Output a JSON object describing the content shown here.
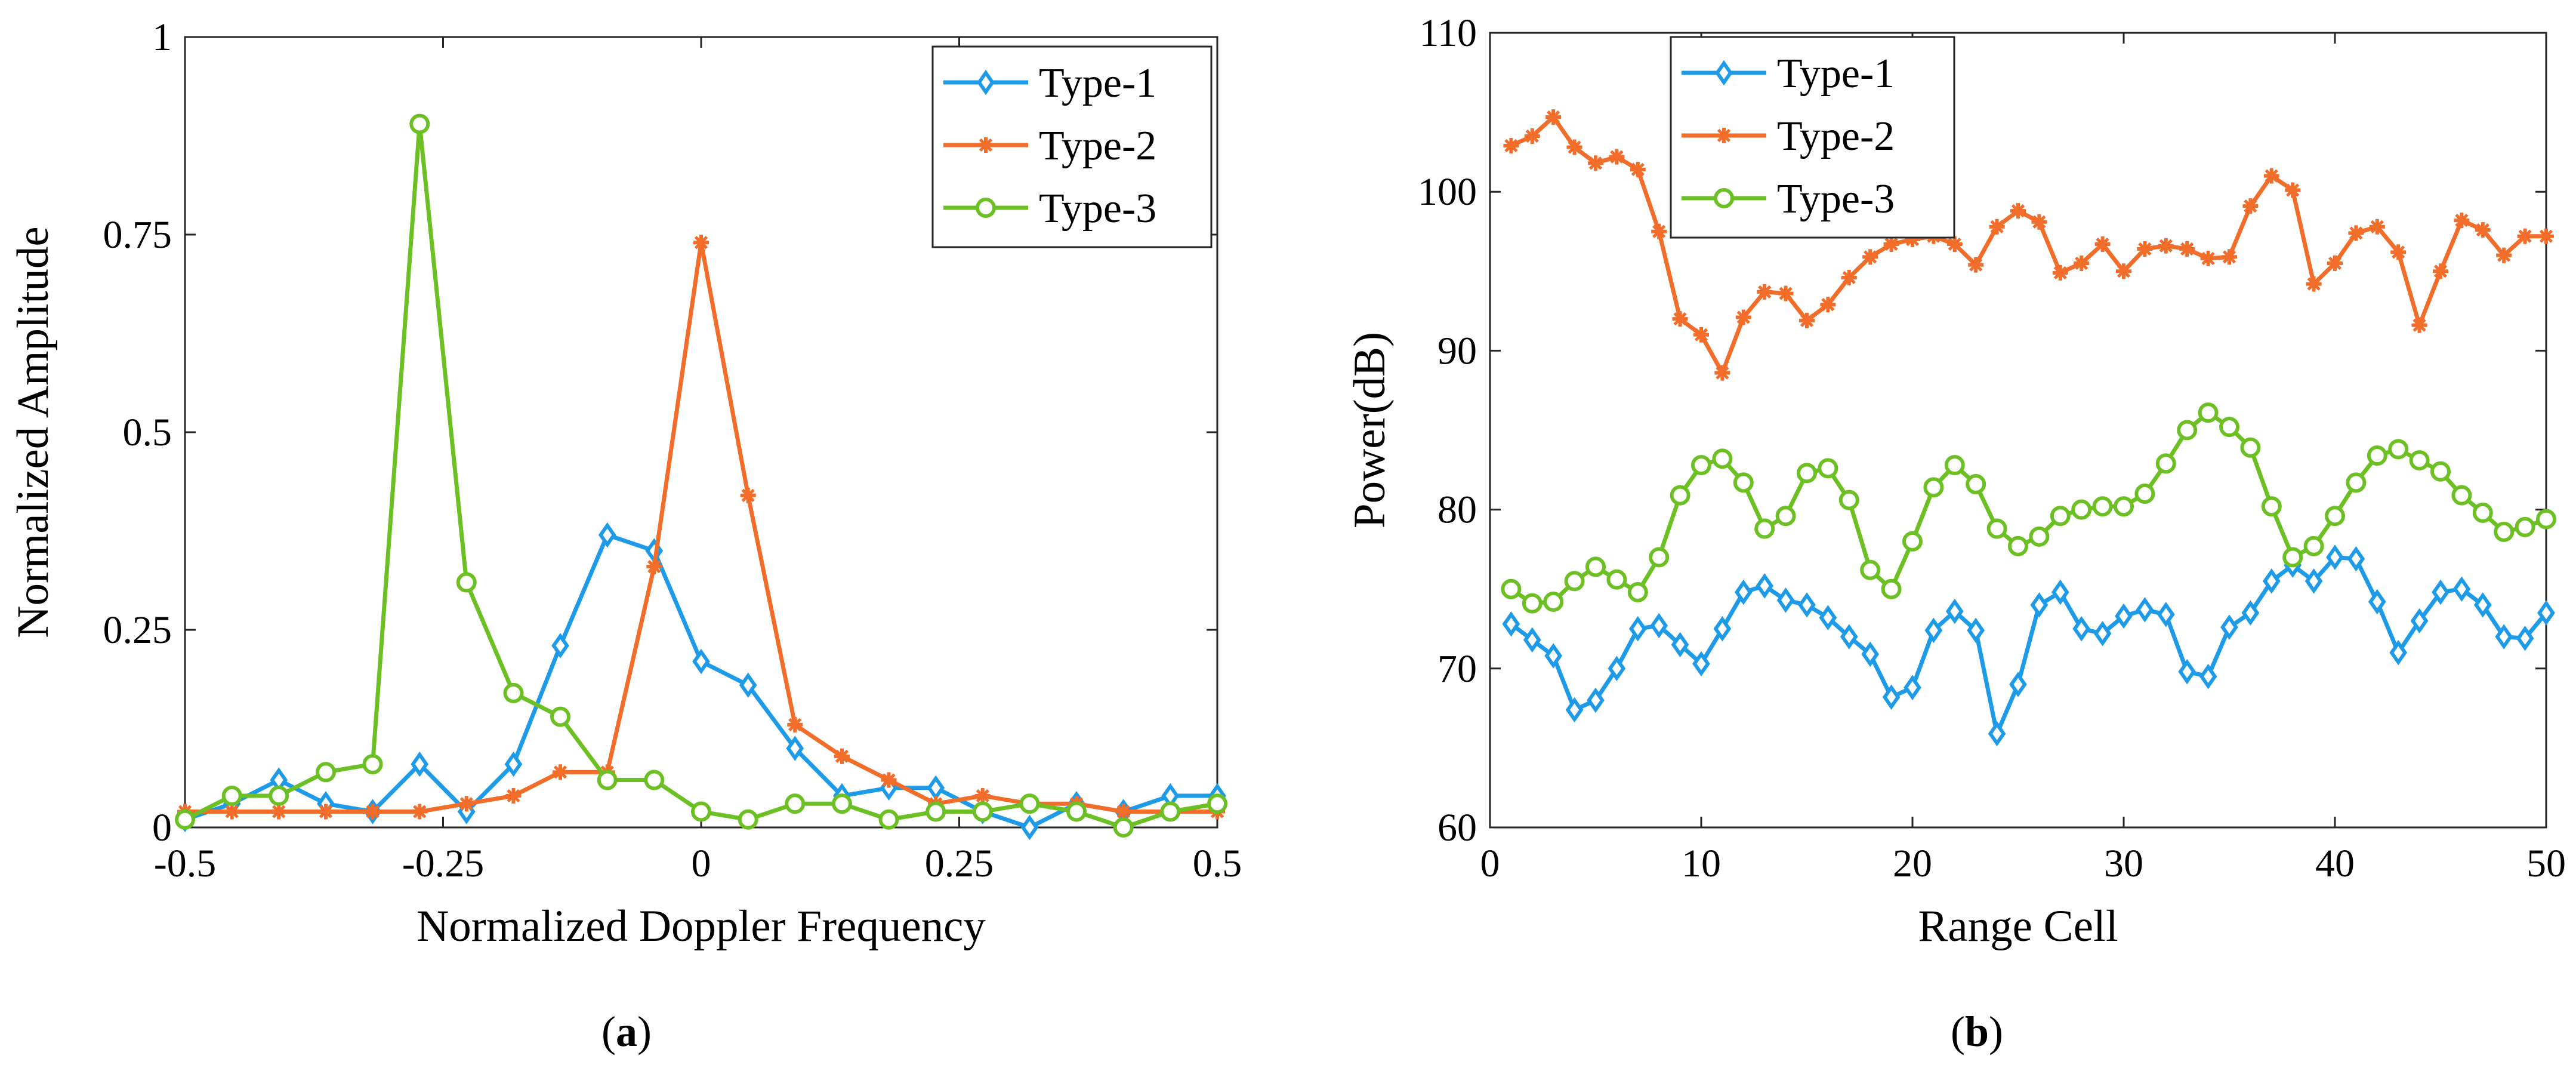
{
  "chart_data": [
    {
      "type": "line",
      "panel": "a",
      "caption": "(a)",
      "caption_letter": "a",
      "xlabel": "Normalized Doppler Frequency",
      "ylabel": "Normalized Amplitude",
      "xlim": [
        -0.5,
        0.5
      ],
      "ylim": [
        0,
        1
      ],
      "xticks": [
        -0.5,
        -0.25,
        0,
        0.25,
        0.5
      ],
      "xtick_labels": [
        "-0.5",
        "-0.25",
        "0",
        "0.25",
        "0.5"
      ],
      "yticks": [
        0,
        0.25,
        0.5,
        0.75,
        1
      ],
      "ytick_labels": [
        "0",
        "0.25",
        "0.5",
        "0.75",
        "1"
      ],
      "legend_position": "top-right",
      "x": [
        -0.5,
        -0.4545,
        -0.4091,
        -0.3636,
        -0.3182,
        -0.2727,
        -0.2273,
        -0.1818,
        -0.1364,
        -0.0909,
        -0.0455,
        0,
        0.0455,
        0.0909,
        0.1364,
        0.1818,
        0.2273,
        0.2727,
        0.3182,
        0.3636,
        0.4091,
        0.4545,
        0.5
      ],
      "series": [
        {
          "name": "Type-1",
          "color": "#1e9be8",
          "marker": "diamond",
          "values": [
            0.01,
            0.03,
            0.06,
            0.03,
            0.02,
            0.08,
            0.02,
            0.08,
            0.23,
            0.37,
            0.35,
            0.21,
            0.18,
            0.1,
            0.04,
            0.05,
            0.05,
            0.02,
            0.0,
            0.03,
            0.02,
            0.04,
            0.04
          ]
        },
        {
          "name": "Type-2",
          "color": "#f26c2a",
          "marker": "asterisk",
          "values": [
            0.02,
            0.02,
            0.02,
            0.02,
            0.02,
            0.02,
            0.03,
            0.04,
            0.07,
            0.07,
            0.33,
            0.74,
            0.42,
            0.13,
            0.09,
            0.06,
            0.03,
            0.04,
            0.03,
            0.03,
            0.02,
            0.02,
            0.02
          ]
        },
        {
          "name": "Type-3",
          "color": "#6cc024",
          "marker": "circle",
          "values": [
            0.01,
            0.04,
            0.04,
            0.07,
            0.08,
            0.89,
            0.31,
            0.17,
            0.14,
            0.06,
            0.06,
            0.02,
            0.01,
            0.03,
            0.03,
            0.01,
            0.02,
            0.02,
            0.03,
            0.02,
            0.0,
            0.02,
            0.03
          ]
        }
      ]
    },
    {
      "type": "line",
      "panel": "b",
      "caption": "(b)",
      "caption_letter": "b",
      "xlabel": "Range Cell",
      "ylabel": "Power(dB)",
      "xlim": [
        0,
        50
      ],
      "ylim": [
        60,
        110
      ],
      "xticks": [
        0,
        10,
        20,
        30,
        40,
        50
      ],
      "xtick_labels": [
        "0",
        "10",
        "20",
        "30",
        "40",
        "50"
      ],
      "yticks": [
        60,
        70,
        80,
        90,
        100,
        110
      ],
      "ytick_labels": [
        "60",
        "70",
        "80",
        "90",
        "100",
        "110"
      ],
      "legend_position": "top-left",
      "x": [
        1,
        2,
        3,
        4,
        5,
        6,
        7,
        8,
        9,
        10,
        11,
        12,
        13,
        14,
        15,
        16,
        17,
        18,
        19,
        20,
        21,
        22,
        23,
        24,
        25,
        26,
        27,
        28,
        29,
        30,
        31,
        32,
        33,
        34,
        35,
        36,
        37,
        38,
        39,
        40,
        41,
        42,
        43,
        44,
        45,
        46,
        47,
        48,
        49,
        50
      ],
      "series": [
        {
          "name": "Type-1",
          "color": "#1e9be8",
          "marker": "diamond",
          "values": [
            72.8,
            71.8,
            70.8,
            67.4,
            68.0,
            70.0,
            72.5,
            72.7,
            71.5,
            70.3,
            72.5,
            74.8,
            75.2,
            74.3,
            74.0,
            73.2,
            72.0,
            70.9,
            68.2,
            68.8,
            72.4,
            73.6,
            72.4,
            65.9,
            69.0,
            74.0,
            74.8,
            72.5,
            72.2,
            73.3,
            73.7,
            73.4,
            69.8,
            69.5,
            72.6,
            73.5,
            75.5,
            76.5,
            75.5,
            77.0,
            76.9,
            74.2,
            71.0,
            73.0,
            74.8,
            75.0,
            74.0,
            72.0,
            71.9,
            73.5
          ]
        },
        {
          "name": "Type-2",
          "color": "#f26c2a",
          "marker": "asterisk",
          "values": [
            102.9,
            103.5,
            104.7,
            102.8,
            101.8,
            102.2,
            101.4,
            97.5,
            92.0,
            91.0,
            88.6,
            92.1,
            93.7,
            93.6,
            91.9,
            92.9,
            94.6,
            95.9,
            96.7,
            97.0,
            97.2,
            96.7,
            95.4,
            97.8,
            98.8,
            98.1,
            94.9,
            95.5,
            96.7,
            95.0,
            96.4,
            96.6,
            96.4,
            95.8,
            95.9,
            99.1,
            101.0,
            100.1,
            94.2,
            95.5,
            97.4,
            97.8,
            96.2,
            91.6,
            95.0,
            98.2,
            97.6,
            96.0,
            97.2,
            97.2
          ]
        },
        {
          "name": "Type-3",
          "color": "#6cc024",
          "marker": "circle",
          "values": [
            75.0,
            74.1,
            74.2,
            75.5,
            76.4,
            75.6,
            74.8,
            77.0,
            80.9,
            82.8,
            83.2,
            81.7,
            78.8,
            79.6,
            82.3,
            82.6,
            80.6,
            76.2,
            75.0,
            78.0,
            81.4,
            82.8,
            81.6,
            78.8,
            77.7,
            78.3,
            79.6,
            80.0,
            80.2,
            80.2,
            81.0,
            82.9,
            85.0,
            86.1,
            85.2,
            83.9,
            80.2,
            77.0,
            77.7,
            79.6,
            81.7,
            83.4,
            83.8,
            83.1,
            82.4,
            80.9,
            79.8,
            78.6,
            78.9,
            79.4
          ]
        }
      ]
    }
  ]
}
